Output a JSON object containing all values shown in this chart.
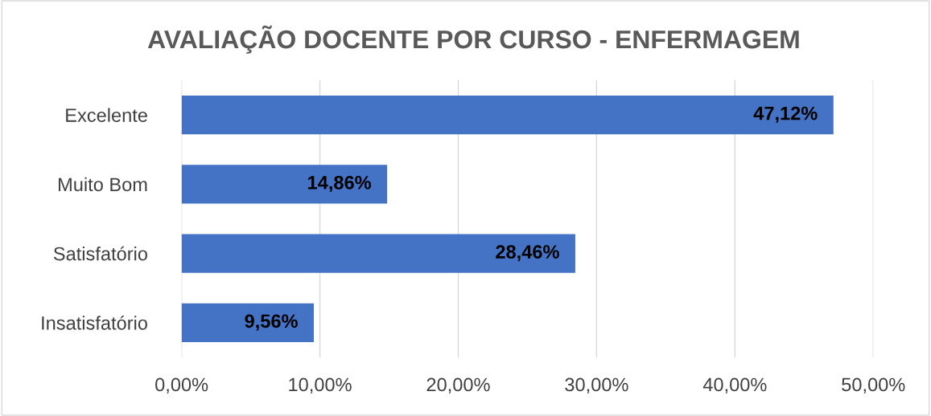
{
  "chart_data": {
    "type": "bar",
    "orientation": "horizontal",
    "title": "AVALIAÇÃO DOCENTE POR CURSO - ENFERMAGEM",
    "categories": [
      "Excelente",
      "Muito Bom",
      "Satisfatório",
      "Insatisfatório"
    ],
    "values": [
      47.12,
      14.86,
      28.46,
      9.56
    ],
    "value_labels": [
      "47,12%",
      "14,86%",
      "28,46%",
      "9,56%"
    ],
    "color": "#4472c4",
    "xlim": [
      0,
      50
    ],
    "xticks": [
      {
        "value": 0,
        "label": "0,00%"
      },
      {
        "value": 10,
        "label": "10,00%"
      },
      {
        "value": 20,
        "label": "20,00%"
      },
      {
        "value": 30,
        "label": "30,00%"
      },
      {
        "value": 40,
        "label": "40,00%"
      },
      {
        "value": 50,
        "label": "50,00%"
      }
    ],
    "grid": "x"
  }
}
